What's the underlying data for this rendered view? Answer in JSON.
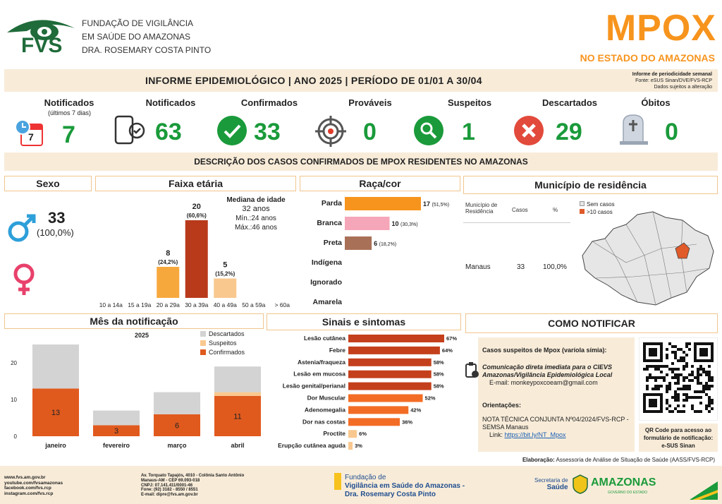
{
  "org": {
    "logo_text": "FVS",
    "line1": "FUNDAÇÃO DE VIGILÂNCIA",
    "line2": "EM SAÚDE DO AMAZONAS",
    "line3": "DRA. ROSEMARY COSTA PINTO"
  },
  "title": {
    "main": "MPOX",
    "sub": "NO ESTADO DO AMAZONAS"
  },
  "banner": {
    "text": "INFORME EPIDEMIOLÓGICO | ANO 2025 | PERÍODO DE 01/01 A 30/04",
    "note1": "Informe de periodicidade semanal",
    "note2": "Fonte: eSUS Sinan/DVE/FVS-RCP",
    "note3": "Dados sujeitos a alteração"
  },
  "kpis": {
    "notif7": {
      "label": "Notificados",
      "sub": "(últimos 7 dias)",
      "value": "7",
      "cal": "7"
    },
    "notif": {
      "label": "Notificados",
      "value": "63"
    },
    "conf": {
      "label": "Confirmados",
      "value": "33"
    },
    "prov": {
      "label": "Prováveis",
      "value": "0"
    },
    "susp": {
      "label": "Suspeitos",
      "value": "1"
    },
    "desc": {
      "label": "Descartados",
      "value": "29"
    },
    "obit": {
      "label": "Óbitos",
      "value": "0"
    }
  },
  "desc_title": "DESCRIÇÃO DOS CASOS CONFIRMADOS DE MPOX RESIDENTES NO AMAZONAS",
  "sexo": {
    "title": "Sexo",
    "value": "33",
    "pct": "(100,0%)"
  },
  "faixa": {
    "title": "Faixa etária",
    "median_title": "Mediana de idade",
    "median": "32 anos",
    "min": "Mín.:24 anos",
    "max": "Máx.:46 anos"
  },
  "raca": {
    "title": "Raça/cor"
  },
  "municipio": {
    "title": "Município de residência",
    "col1": "Município de Residência",
    "col2": "Casos",
    "col3": "%",
    "row_name": "Manaus",
    "row_cases": "33",
    "row_pct": "100,0%",
    "legend_none": "Sem casos",
    "legend_gt10": ">10 casos"
  },
  "mes": {
    "title": "Mês da notificação",
    "year": "2025"
  },
  "sinais": {
    "title": "Sinais e sintomas"
  },
  "notificar": {
    "title": "COMO NOTIFICAR",
    "suspects": "Casos suspeitos de Mpox (varíola símia):",
    "comm1": "Comunicação direta imediata para o CIEVS",
    "comm2": "Amazonas/Vigilância Epidemiológica Local",
    "email": "E-mail:  monkeypoxcoeam@gmail.com",
    "orient": "Orientações:",
    "nota1": "NOTA TÉCNICA CONJUNTA Nº04/2024/FVS-RCP -",
    "nota2": "SEMSA Manaus",
    "link_label": "Link:",
    "link": "https://bit.ly/NT_Mpox",
    "qr_caption1": "QR Code para acesso ao",
    "qr_caption2": "formulário de notificação:",
    "qr_caption3": "e-SUS Sinan"
  },
  "elaboracao_label": "Elaboração:",
  "elaboracao": "Assessoria de Análise de Situação de Saúde (AASS/FVS-RCP)",
  "footer": {
    "web1": "www.fvs.am.gov.br",
    "web2": "youtube.com/fvsamazonas",
    "web3": "facebook.com/fvs.rcp",
    "web4": "instagram.com/fvs.rcp",
    "addr1": "Av. Torquato Tapajós, 4010 - Colônia Santo Antônio",
    "addr2": "Manaus-AM - CEP 69.093-018",
    "addr3": "CNPJ: 07.141.411/0001-46",
    "addr4": "Fone: (92) 3182 - 8550 / 8551",
    "addr5": "E-mail: dipre@fvs.am.gov.br",
    "fund1": "Fundação de",
    "fund2": "Vigilância em Saúde do Amazonas -",
    "fund3": "Dra. Rosemary Costa Pinto",
    "sec1": "Secretaria de",
    "sec2": "Saúde",
    "gov": "AMAZONAS",
    "gov_sub": "GOVERNO DO ESTADO"
  },
  "colors": {
    "orange": "#f7941d",
    "green": "#1a9a3a",
    "darkred": "#b83a1b",
    "peach": "#f9bc74"
  },
  "chart_data": [
    {
      "type": "bar",
      "title": "Faixa etária",
      "categories": [
        "10 a 14a",
        "15 a 19a",
        "20 a 29a",
        "30 a 39a",
        "40 a 49a",
        "50 a 59a",
        "> 60a"
      ],
      "values": [
        0,
        0,
        8,
        20,
        5,
        0,
        0
      ],
      "labels": [
        "",
        "",
        "(24,2%)",
        "(60,6%)",
        "(15,2%)",
        "",
        ""
      ]
    },
    {
      "type": "bar",
      "title": "Raça/cor",
      "orientation": "horizontal",
      "categories": [
        "Parda",
        "Branca",
        "Preta",
        "Indígena",
        "Ignorado",
        "Amarela"
      ],
      "values": [
        17,
        10,
        6,
        0,
        0,
        0
      ],
      "labels": [
        "(51,5%)",
        "(30,3%)",
        "(18,2%)",
        "",
        "",
        ""
      ]
    },
    {
      "type": "bar",
      "stacked": true,
      "title": "2025",
      "categories": [
        "janeiro",
        "fevereiro",
        "março",
        "abril"
      ],
      "series": [
        {
          "name": "Confirmados",
          "values": [
            13,
            3,
            6,
            11
          ]
        },
        {
          "name": "Suspeitos",
          "values": [
            0,
            0,
            0,
            1
          ]
        },
        {
          "name": "Descartados",
          "values": [
            12,
            4,
            6,
            7
          ]
        }
      ],
      "ylim": [
        0,
        25
      ],
      "yticks": [
        0,
        10,
        20
      ]
    },
    {
      "type": "bar",
      "orientation": "horizontal",
      "title": "Sinais e sintomas",
      "categories": [
        "Lesão cutânea",
        "Febre",
        "Astenia/fraqueza",
        "Lesão em mucosa",
        "Lesão genital/perianal",
        "Dor Muscular",
        "Adenomegalia",
        "Dor nas costas",
        "Proctite",
        "Erupção cutânea aguda"
      ],
      "values": [
        67,
        64,
        58,
        58,
        58,
        52,
        42,
        36,
        6,
        3
      ],
      "unit": "%"
    }
  ]
}
